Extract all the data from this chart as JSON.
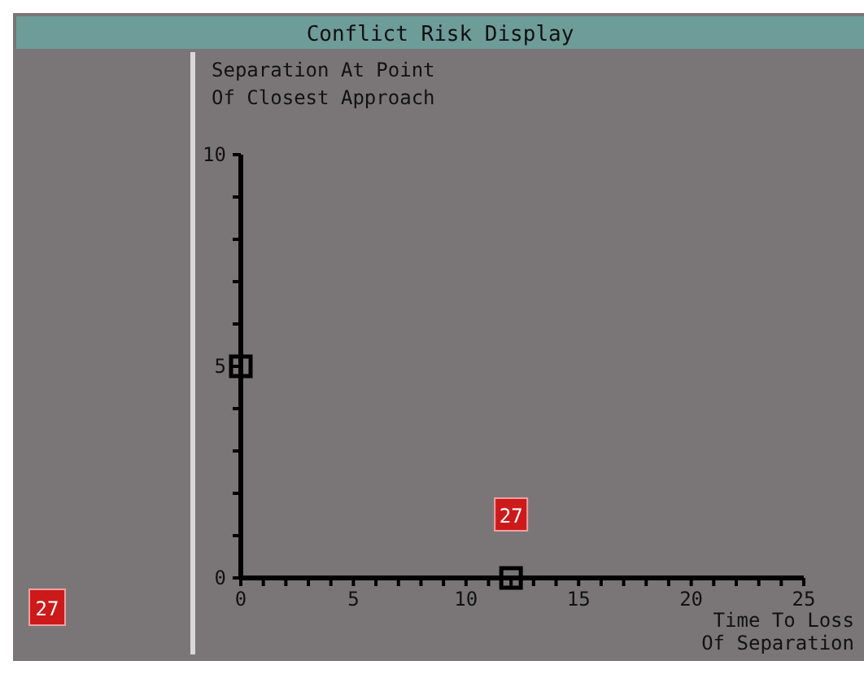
{
  "chart_data": {
    "type": "scatter",
    "title": "Conflict Risk Display",
    "ylabel": "Separation At Point\nOf Closest Approach",
    "xlabel": "Time To Loss\nOf Separation",
    "xlim": [
      0,
      25
    ],
    "ylim": [
      0,
      10
    ],
    "xticks": [
      0,
      {
        "value": 1,
        "label": null
      },
      {
        "value": 2,
        "label": null
      },
      {
        "value": 3,
        "label": null
      },
      {
        "value": 4,
        "label": null
      },
      5,
      {
        "value": 6,
        "label": null
      },
      {
        "value": 7,
        "label": null
      },
      {
        "value": 8,
        "label": null
      },
      {
        "value": 9,
        "label": null
      },
      10,
      {
        "value": 11,
        "label": null
      },
      {
        "value": 12,
        "label": null
      },
      {
        "value": 13,
        "label": null
      },
      {
        "value": 14,
        "label": null
      },
      15,
      {
        "value": 16,
        "label": null
      },
      {
        "value": 17,
        "label": null
      },
      {
        "value": 18,
        "label": null
      },
      {
        "value": 19,
        "label": null
      },
      20,
      {
        "value": 21,
        "label": null
      },
      {
        "value": 22,
        "label": null
      },
      {
        "value": 23,
        "label": null
      },
      {
        "value": 24,
        "label": null
      },
      25
    ],
    "yticks": [
      0,
      {
        "value": 1,
        "label": null
      },
      {
        "value": 2,
        "label": null
      },
      {
        "value": 3,
        "label": null
      },
      {
        "value": 4,
        "label": null
      },
      5,
      {
        "value": 6,
        "label": null
      },
      {
        "value": 7,
        "label": null
      },
      {
        "value": 8,
        "label": null
      },
      {
        "value": 9,
        "label": null
      },
      10
    ],
    "grid": false,
    "x": [
      0,
      12
    ],
    "series": [
      {
        "marker": "square",
        "color": "#000000",
        "values": [
          5,
          0
        ]
      },
      {
        "marker": "square",
        "color": "#cc1a1a",
        "values": [
          null,
          1.5
        ]
      }
    ],
    "annotations": [
      {
        "text": "27",
        "x": 12,
        "y": 1.5
      },
      "27"
    ]
  }
}
